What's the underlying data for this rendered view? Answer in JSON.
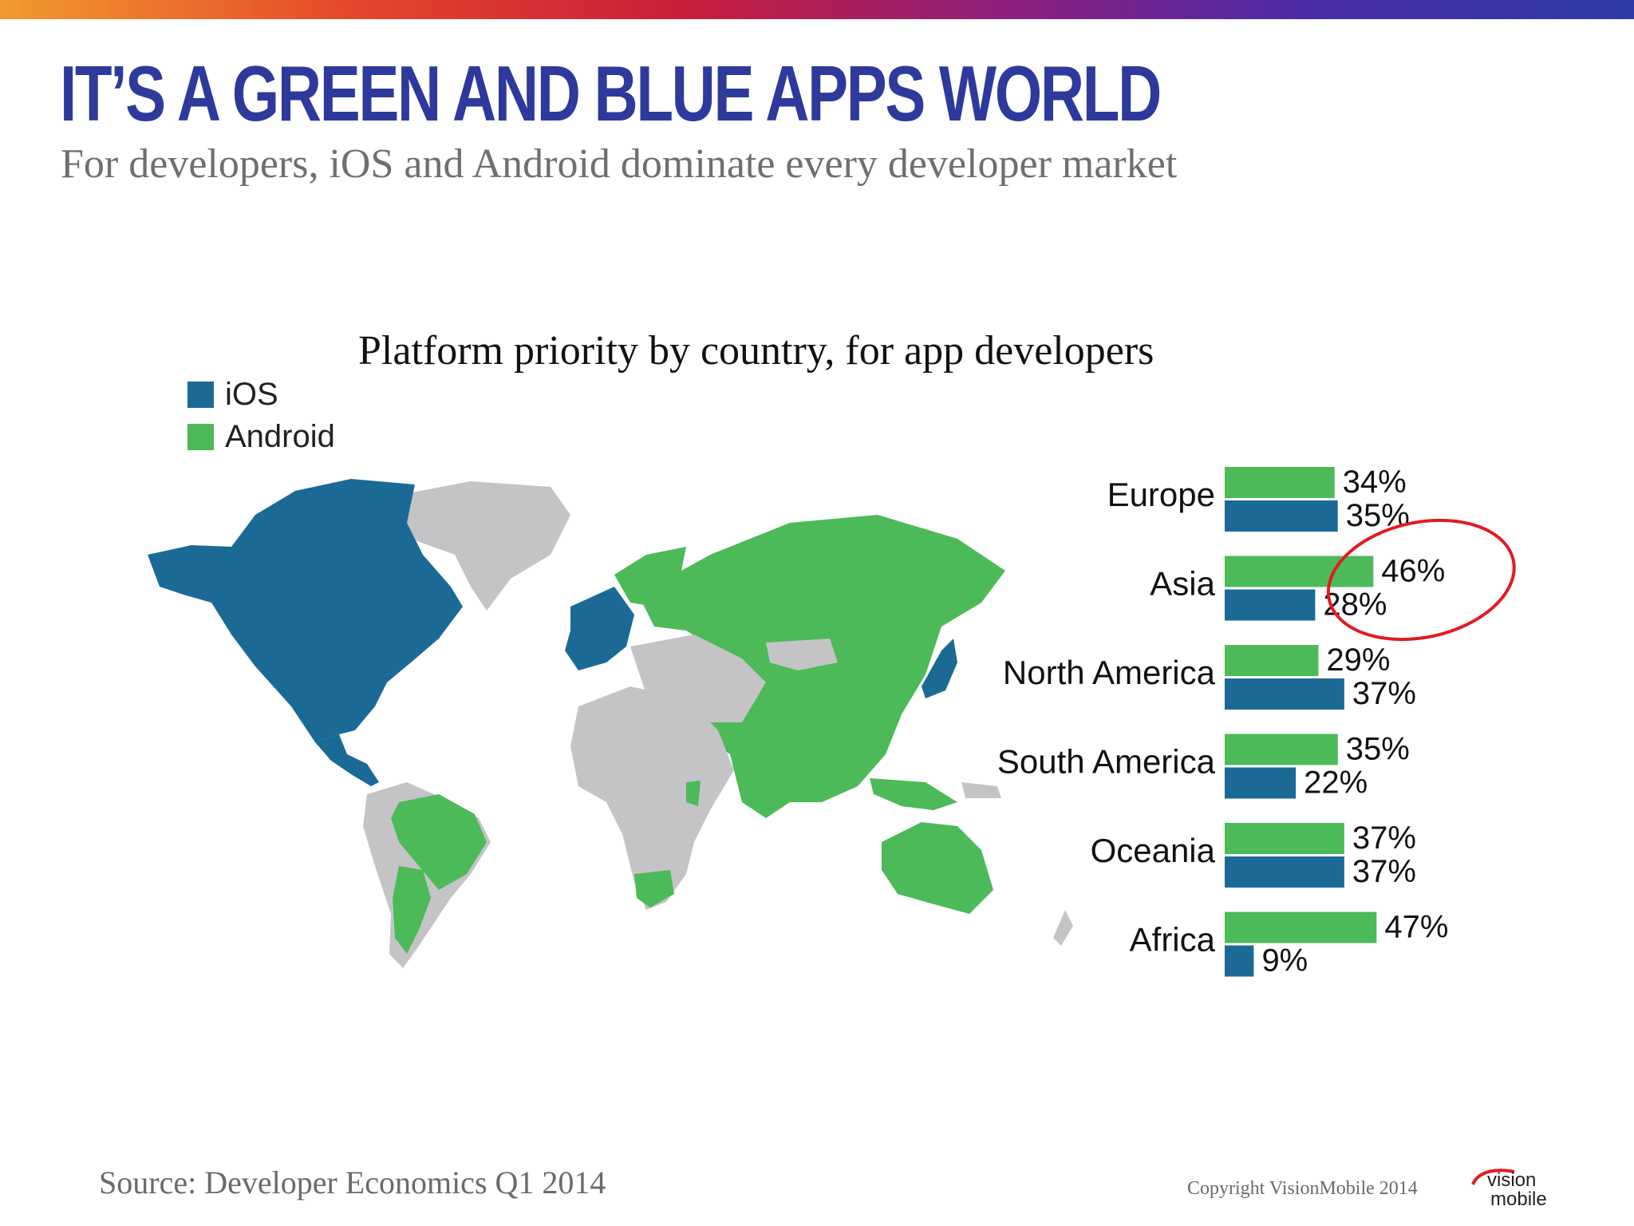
{
  "header": {
    "title": "IT’S A GREEN AND BLUE APPS WORLD",
    "subtitle": "For developers, iOS and Android dominate every developer market"
  },
  "colors": {
    "ios": "#1b6a96",
    "android": "#4cba58",
    "gray": "#c4c4c6",
    "title": "#2d3a9c",
    "annotation": "#e11b22"
  },
  "chart_data": {
    "type": "bar",
    "title": "Platform priority by country, for app developers",
    "orientation": "horizontal",
    "categories": [
      "Europe",
      "Asia",
      "North America",
      "South America",
      "Oceania",
      "Africa"
    ],
    "series": [
      {
        "name": "Android",
        "values": [
          34,
          46,
          29,
          35,
          37,
          47
        ]
      },
      {
        "name": "iOS",
        "values": [
          35,
          28,
          37,
          22,
          37,
          9
        ]
      }
    ],
    "value_labels": {
      "Android": [
        "34%",
        "46%",
        "29%",
        "35%",
        "37%",
        "47%"
      ],
      "iOS": [
        "35%",
        "28%",
        "37%",
        "22%",
        "37%",
        "9%"
      ]
    },
    "legend": {
      "placement": "top-left",
      "entries": [
        "iOS",
        "Android"
      ]
    },
    "annotation": {
      "type": "red-circle",
      "target": "Asia Android 46%"
    },
    "map": {
      "ios_regions": [
        "North America",
        "Western Europe",
        "Japan"
      ],
      "android_regions": [
        "Russia",
        "Eastern Europe",
        "China",
        "India",
        "Southeast Asia",
        "Brazil",
        "Argentina",
        "Australia",
        "South Africa",
        "East Africa"
      ]
    }
  },
  "footer": {
    "source": "Source: Developer Economics Q1 2014",
    "copyright": "Copyright VisionMobile 2014",
    "logo_line1": "vision",
    "logo_line2": "mobile"
  }
}
